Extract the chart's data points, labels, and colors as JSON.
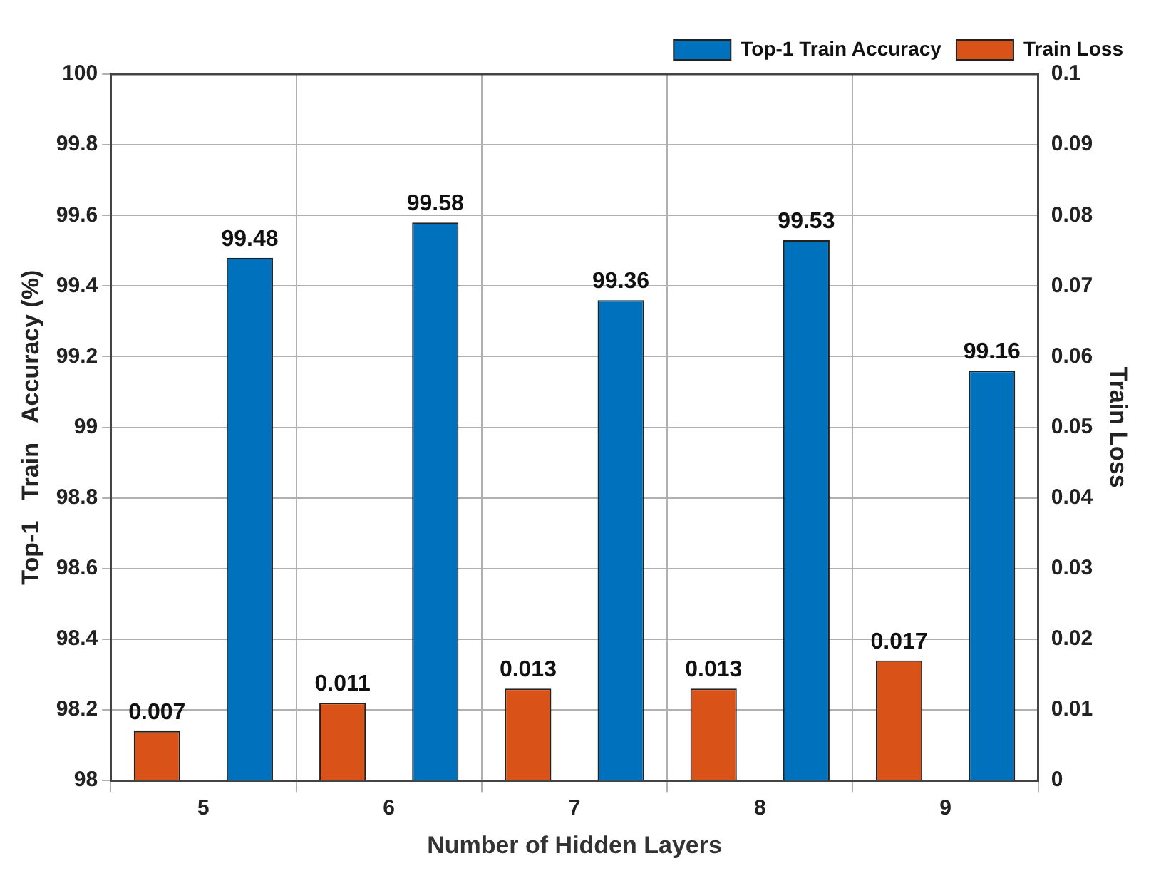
{
  "chart_data": {
    "type": "bar",
    "xlabel": "Number of Hidden Layers",
    "ylabel": "Top-1   Train   Accuracy (%)",
    "y2label": "Train Loss",
    "categories": [
      "5",
      "6",
      "7",
      "8",
      "9"
    ],
    "series": [
      {
        "name": "Top-1 Train Accuracy",
        "color": "#0072bd",
        "values": [
          99.48,
          99.58,
          99.36,
          99.53,
          99.16
        ]
      },
      {
        "name": "Train Loss",
        "color": "#d95319",
        "axis": "y2",
        "values": [
          0.007,
          0.011,
          0.013,
          0.013,
          0.017
        ]
      }
    ],
    "ylim": [
      98,
      100
    ],
    "yticks": [
      98,
      98.2,
      98.4,
      98.6,
      98.8,
      99,
      99.2,
      99.4,
      99.6,
      99.8,
      100
    ],
    "y2lim": [
      0,
      0.1
    ],
    "y2ticks": [
      0,
      0.01,
      0.02,
      0.03,
      0.04,
      0.05,
      0.06,
      0.07,
      0.08,
      0.09,
      0.1
    ],
    "grid": true,
    "legend": "top right",
    "data_labels": true
  }
}
